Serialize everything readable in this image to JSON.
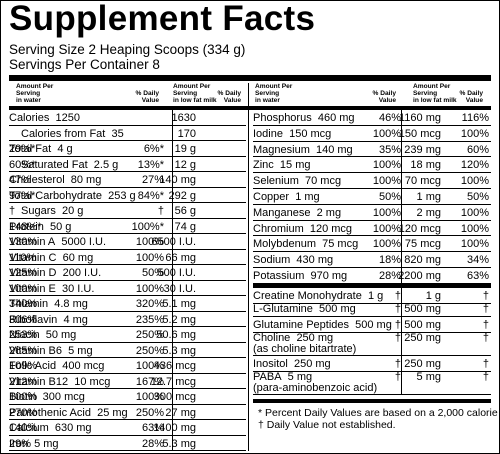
{
  "title": "Supplement Facts",
  "serving_size": "Serving Size 2 Heaping Scoops (334 g)",
  "servings_per_container": "Servings Per Container 8",
  "headers": {
    "amount_water": "Amount Per\nServing\nin water",
    "dv": "% Daily\nValue",
    "amount_milk": "Amount Per\nServing\nin low fat milk"
  },
  "left_rows": [
    {
      "name": "Calories",
      "amt": "1250",
      "dv": "",
      "milk": "1630",
      "milk_dv": ""
    },
    {
      "name": "Calories from Fat",
      "amt": "35",
      "dv": "",
      "milk": "170",
      "milk_dv": "",
      "indent": true
    },
    {
      "name": "Total Fat",
      "amt": "4 g",
      "dv": "6%*",
      "milk": "19 g",
      "milk_dv": "29%*"
    },
    {
      "name": "Saturated Fat",
      "amt": "2.5 g",
      "dv": "13%*",
      "milk": "12 g",
      "milk_dv": "60%*",
      "indent": true
    },
    {
      "name": "Cholesterol",
      "amt": "80 mg",
      "dv": "27%",
      "milk": "140 mg",
      "milk_dv": "47%"
    },
    {
      "name": "Total Carbohydrate",
      "amt": "253 g",
      "dv": "84%*",
      "milk": "292 g",
      "milk_dv": "97%*"
    },
    {
      "name": "Sugars",
      "amt": "20 g",
      "dv": "†",
      "milk": "56 g",
      "milk_dv": "†",
      "indent": true
    },
    {
      "name": "Protein",
      "amt": "50 g",
      "dv": "100%*",
      "milk": "74 g",
      "milk_dv": "148%*"
    },
    {
      "name": "Vitamin A",
      "amt": "5000 I.U.",
      "dv": "100%",
      "milk": "6500 I.U.",
      "milk_dv": "130%"
    },
    {
      "name": "Vitamin C",
      "amt": "60 mg",
      "dv": "100%",
      "milk": "66 mg",
      "milk_dv": "110%"
    },
    {
      "name": "Vitamin D",
      "amt": "200 I.U.",
      "dv": "50%",
      "milk": "500 I.U.",
      "milk_dv": "125%"
    },
    {
      "name": "Vitamin E",
      "amt": "30 I.U.",
      "dv": "100%",
      "milk": "30 I.U.",
      "milk_dv": "100%"
    },
    {
      "name": "Thiamin",
      "amt": "4.8 mg",
      "dv": "320%",
      "milk": "5.1 mg",
      "milk_dv": "340%"
    },
    {
      "name": "Riboflavin",
      "amt": "4 mg",
      "dv": "235%",
      "milk": "5.2 mg",
      "milk_dv": "306%"
    },
    {
      "name": "Niacin",
      "amt": "50 mg",
      "dv": "250%",
      "milk": "50.6 mg",
      "milk_dv": "253%"
    },
    {
      "name": "Vitamin B6",
      "amt": "5 mg",
      "dv": "250%",
      "milk": "5.3 mg",
      "milk_dv": "265%"
    },
    {
      "name": "Folic Acid",
      "amt": "400 mcg",
      "dv": "100%",
      "milk": "436 mcg",
      "milk_dv": "109%"
    },
    {
      "name": "Vitamin B12",
      "amt": "10 mcg",
      "dv": "167%",
      "milk": "12.7 mcg",
      "milk_dv": "212%"
    },
    {
      "name": "Biotin",
      "amt": "300 mcg",
      "dv": "100%",
      "milk": "300 mcg",
      "milk_dv": "100%"
    },
    {
      "name": "Pantothenic Acid",
      "amt": "25 mg",
      "dv": "250%",
      "milk": "27 mg",
      "milk_dv": "270%"
    },
    {
      "name": "Calcium",
      "amt": "630 mg",
      "dv": "63%",
      "milk": "1400 mg",
      "milk_dv": "140%"
    },
    {
      "name": "Iron",
      "amt": "5 mg",
      "dv": "28%",
      "milk": "5.3 mg",
      "milk_dv": "29%"
    }
  ],
  "right_rows": [
    {
      "name": "Phosphorus",
      "amt": "460 mg",
      "dv": "46%",
      "milk": "1160 mg",
      "milk_dv": "116%"
    },
    {
      "name": "Iodine",
      "amt": "150 mcg",
      "dv": "100%",
      "milk": "150 mcg",
      "milk_dv": "100%"
    },
    {
      "name": "Magnesium",
      "amt": "140 mg",
      "dv": "35%",
      "milk": "239 mg",
      "milk_dv": "60%"
    },
    {
      "name": "Zinc",
      "amt": "15 mg",
      "dv": "100%",
      "milk": "18 mg",
      "milk_dv": "120%"
    },
    {
      "name": "Selenium",
      "amt": "70 mcg",
      "dv": "100%",
      "milk": "70 mcg",
      "milk_dv": "100%"
    },
    {
      "name": "Copper",
      "amt": "1 mg",
      "dv": "50%",
      "milk": "1 mg",
      "milk_dv": "50%"
    },
    {
      "name": "Manganese",
      "amt": "2 mg",
      "dv": "100%",
      "milk": "2 mg",
      "milk_dv": "100%"
    },
    {
      "name": "Chromium",
      "amt": "120 mcg",
      "dv": "100%",
      "milk": "120 mcg",
      "milk_dv": "100%"
    },
    {
      "name": "Molybdenum",
      "amt": "75 mcg",
      "dv": "100%",
      "milk": "75 mcg",
      "milk_dv": "100%"
    },
    {
      "name": "Sodium",
      "amt": "430 mg",
      "dv": "18%",
      "milk": "820 mg",
      "milk_dv": "34%"
    },
    {
      "name": "Potassium",
      "amt": "970 mg",
      "dv": "28%",
      "milk": "2200 mg",
      "milk_dv": "63%"
    }
  ],
  "dagger_rows": [
    {
      "name": "Creatine Monohydrate",
      "amt": "1 g",
      "dv": "†",
      "milk": "1 g",
      "milk_dv": "†"
    },
    {
      "name": "L-Glutamine",
      "amt": "500 mg",
      "dv": "†",
      "milk": "500 mg",
      "milk_dv": "†"
    },
    {
      "name": "Glutamine Peptides",
      "amt": "500 mg",
      "dv": "†",
      "milk": "500 mg",
      "milk_dv": "†"
    },
    {
      "name": "Choline",
      "amt": "250 mg",
      "sub": "(as choline bitartrate)",
      "dv": "†",
      "milk": "250 mg",
      "milk_dv": "†"
    },
    {
      "name": "Inositol",
      "amt": "250 mg",
      "dv": "†",
      "milk": "250 mg",
      "milk_dv": "†"
    },
    {
      "name": "PABA",
      "amt": "5 mg",
      "sub": "(para-aminobenzoic acid)",
      "dv": "†",
      "milk": "5 mg",
      "milk_dv": "†"
    }
  ],
  "footnotes": [
    "* Percent Daily Values are based on a 2,000 calorie diet.",
    "† Daily Value not established."
  ]
}
